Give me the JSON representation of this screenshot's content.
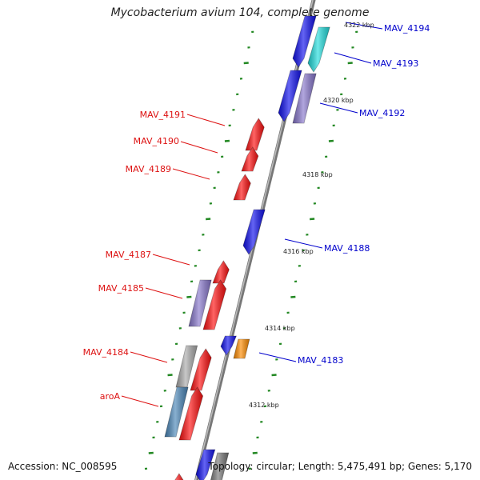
{
  "title": "Mycobacterium avium 104, complete genome",
  "accession": "Accession: NC_008595",
  "summary": "Topology: circular; Length: 5,475,491 bp; Genes: 5,170",
  "scale_labels": [
    "4322 kbp",
    "4320 kbp",
    "4318 kbp",
    "4316 kbp",
    "4314 kbp",
    "4312 kbp"
  ],
  "colors": {
    "forward_label": "#dd1111",
    "reverse_label": "#0000cc",
    "backbone": "#888888",
    "tick": "#228822",
    "red": "#ff1111",
    "blue": "#1111ee",
    "cyan": "#22dddd",
    "purple": "#8877cc",
    "gray": "#aaaaaa",
    "steel": "#4a86b8",
    "orange": "#ff8c00"
  },
  "genes": [
    {
      "name": "MAV_4194",
      "strand": "reverse"
    },
    {
      "name": "MAV_4193",
      "strand": "reverse"
    },
    {
      "name": "MAV_4192",
      "strand": "reverse"
    },
    {
      "name": "MAV_4191",
      "strand": "forward"
    },
    {
      "name": "MAV_4190",
      "strand": "forward"
    },
    {
      "name": "MAV_4189",
      "strand": "forward"
    },
    {
      "name": "MAV_4188",
      "strand": "reverse"
    },
    {
      "name": "MAV_4187",
      "strand": "forward"
    },
    {
      "name": "MAV_4185",
      "strand": "forward"
    },
    {
      "name": "MAV_4184",
      "strand": "forward"
    },
    {
      "name": "MAV_4183",
      "strand": "reverse"
    },
    {
      "name": "aroA",
      "strand": "forward"
    }
  ]
}
